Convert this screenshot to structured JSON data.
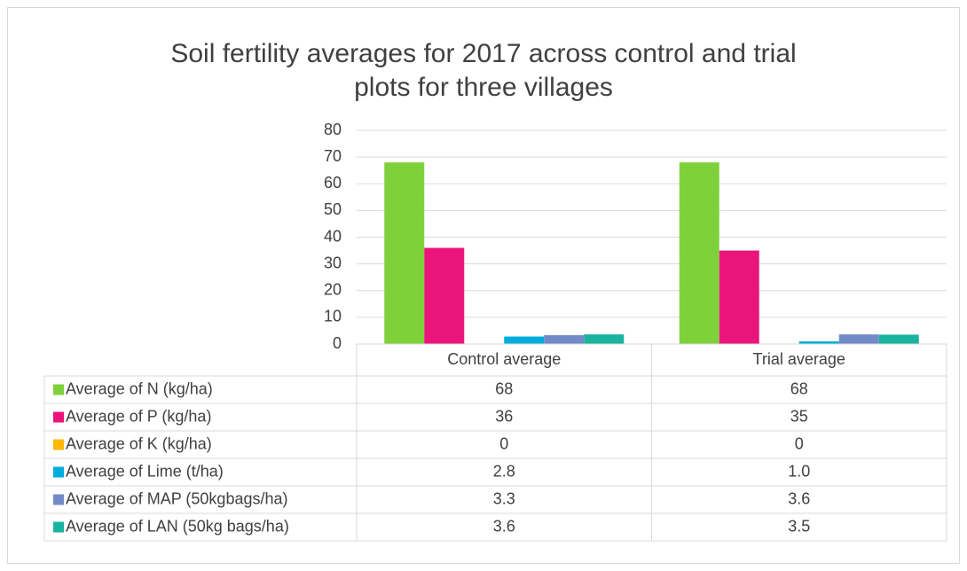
{
  "chart_data": {
    "type": "bar",
    "title": "Soil fertility averages for 2017 across control and trial plots for three villages",
    "categories": [
      "Control average",
      "Trial average"
    ],
    "series": [
      {
        "name": "Average of N  (kg/ha)",
        "color": "#7fd13b",
        "values": [
          68,
          68
        ]
      },
      {
        "name": "Average of P  (kg/ha)",
        "color": "#ea157a",
        "values": [
          36,
          35
        ]
      },
      {
        "name": "Average of K  (kg/ha)",
        "color": "#feb80a",
        "values": [
          0,
          0
        ]
      },
      {
        "name": "Average of Lime (t/ha)",
        "color": "#00addc",
        "values": [
          2.8,
          1.0
        ],
        "value_labels": [
          "2.8",
          "1.0"
        ]
      },
      {
        "name": "Average of MAP (50kgbags/ha)",
        "color": "#738ac8",
        "values": [
          3.3,
          3.6
        ]
      },
      {
        "name": "Average of LAN (50kg bags/ha)",
        "color": "#1ab39f",
        "values": [
          3.6,
          3.5
        ]
      }
    ],
    "ylim": [
      0,
      80
    ],
    "yticks": [
      0,
      10,
      20,
      30,
      40,
      50,
      60,
      70,
      80
    ],
    "grid": true,
    "legend": "table"
  }
}
